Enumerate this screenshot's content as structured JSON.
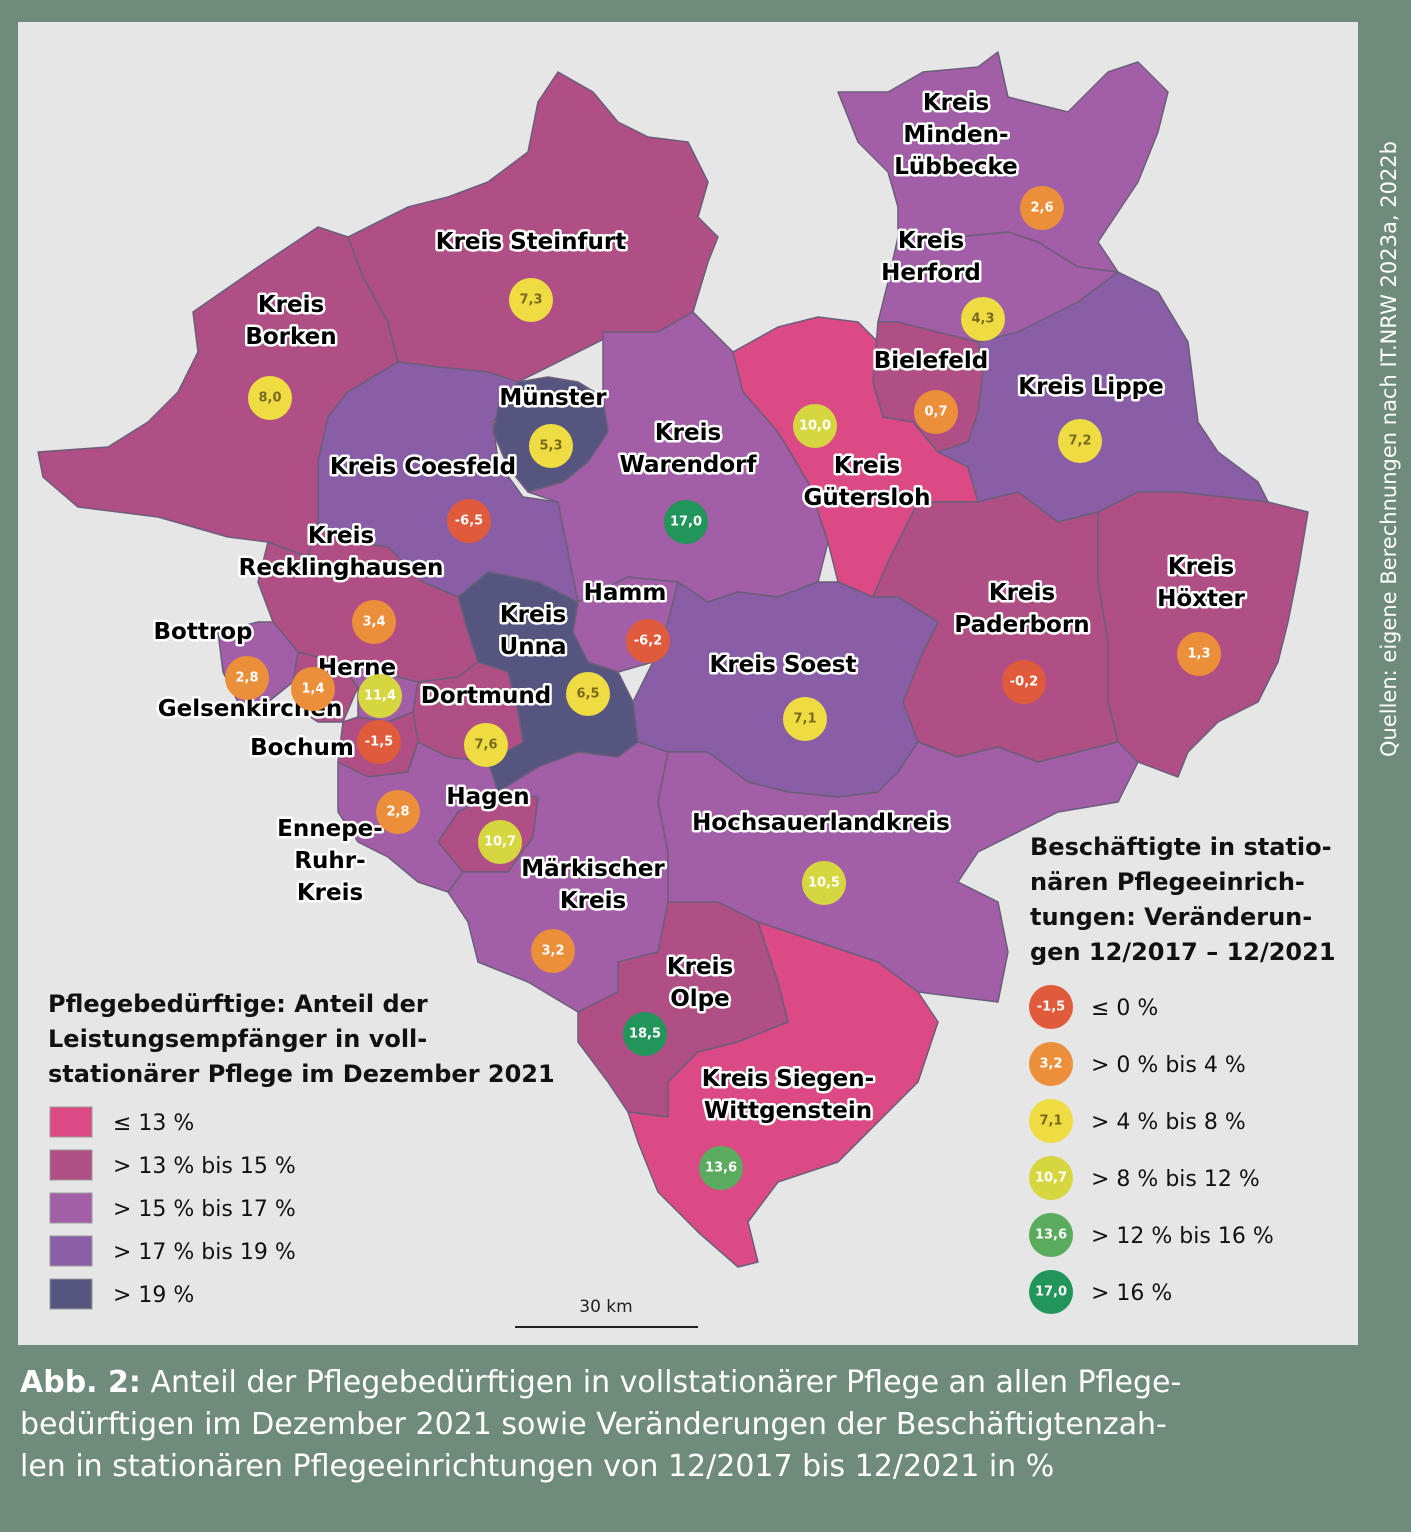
{
  "caption": {
    "label": "Abb. 2:",
    "line1": "Anteil der Pflegebedürftigen in vollstationärer Pflege an allen Pflege-",
    "line2": "bedürftigen im Dezember 2021 sowie Veränderungen der Beschäftigtenzah-",
    "line3": "len in stationären Pflegeeinrichtungen von 12/2017 bis 12/2021 in %"
  },
  "source": "Quellen: eigene Berechnungen nach IT.NRW 2023a, 2022b",
  "scale_bar": "30 km",
  "legend_share": {
    "title": [
      "Pflegebedürftige: Anteil der",
      "Leistungsempfänger in voll-",
      "stationärer Pflege im Dezember 2021"
    ],
    "classes": [
      {
        "label": "≤ 13 %",
        "color": "#db4a85"
      },
      {
        "label": "> 13 % bis 15 %",
        "color": "#b04e86"
      },
      {
        "label": "> 15 % bis 17 %",
        "color": "#a25ea6"
      },
      {
        "label": "> 17 % bis 19 %",
        "color": "#8a5ea6"
      },
      {
        "label": "> 19 %",
        "color": "#565580"
      }
    ]
  },
  "legend_change": {
    "title": [
      "Beschäftigte in statio-",
      "nären Pflegeeinrich-",
      "tungen: Veränderun-",
      "gen 12/2017 – 12/2021"
    ],
    "classes": [
      {
        "sample": "-1,5",
        "label": "≤ 0 %",
        "color": "#e05b3c",
        "text_color": "#ffffff"
      },
      {
        "sample": "3,2",
        "label": "> 0 % bis 4 %",
        "color": "#ec8f3a",
        "text_color": "#ffffff"
      },
      {
        "sample": "7,1",
        "label": "> 4 % bis 8 %",
        "color": "#eedc42",
        "text_color": "#7a6a20"
      },
      {
        "sample": "10,7",
        "label": "> 8 % bis 12 %",
        "color": "#d6d740",
        "text_color": "#ffffff"
      },
      {
        "sample": "13,6",
        "label": "> 12 % bis 16 %",
        "color": "#5bab5e",
        "text_color": "#ffffff"
      },
      {
        "sample": "17,0",
        "label": "> 16 %",
        "color": "#22955a",
        "text_color": "#ffffff"
      }
    ]
  },
  "regions": [
    {
      "id": "steinfurt",
      "label": [
        "Kreis Steinfurt"
      ],
      "value": "7,3",
      "share_class": 1,
      "change_class": 2
    },
    {
      "id": "borken",
      "label": [
        "Kreis",
        "Borken"
      ],
      "value": "8,0",
      "share_class": 1,
      "change_class": 2
    },
    {
      "id": "muenster",
      "label": [
        "Münster"
      ],
      "value": "5,3",
      "share_class": 4,
      "change_class": 2
    },
    {
      "id": "warendorf",
      "label": [
        "Kreis",
        "Warendorf"
      ],
      "value": "17,0",
      "share_class": 2,
      "change_class": 5
    },
    {
      "id": "coesfeld",
      "label": [
        "Kreis Coesfeld"
      ],
      "value": "-6,5",
      "share_class": 3,
      "change_class": 0
    },
    {
      "id": "minden",
      "label": [
        "Kreis",
        "Minden-",
        "Lübbecke"
      ],
      "value": "2,6",
      "share_class": 2,
      "change_class": 1
    },
    {
      "id": "herford",
      "label": [
        "Kreis",
        "Herford"
      ],
      "value": "4,3",
      "share_class": 2,
      "change_class": 2
    },
    {
      "id": "bielefeld",
      "label": [
        "Bielefeld"
      ],
      "value": "0,7",
      "share_class": 1,
      "change_class": 1
    },
    {
      "id": "lippe",
      "label": [
        "Kreis Lippe"
      ],
      "value": "7,2",
      "share_class": 3,
      "change_class": 2
    },
    {
      "id": "guetersloh",
      "label": [
        "Kreis",
        "Gütersloh"
      ],
      "value": "10,0",
      "share_class": 0,
      "change_class": 3
    },
    {
      "id": "recklinghausen",
      "label": [
        "Kreis",
        "Recklinghausen"
      ],
      "value": "3,4",
      "share_class": 1,
      "change_class": 1
    },
    {
      "id": "unna",
      "label": [
        "Kreis",
        "Unna"
      ],
      "value": "6,5",
      "share_class": 4,
      "change_class": 2
    },
    {
      "id": "hamm",
      "label": [
        "Hamm"
      ],
      "value": "-6,2",
      "share_class": 2,
      "change_class": 0
    },
    {
      "id": "soest",
      "label": [
        "Kreis Soest"
      ],
      "value": "7,1",
      "share_class": 3,
      "change_class": 2
    },
    {
      "id": "paderborn",
      "label": [
        "Kreis",
        "Paderborn"
      ],
      "value": "-0,2",
      "share_class": 1,
      "change_class": 0
    },
    {
      "id": "hoexter",
      "label": [
        "Kreis",
        "Höxter"
      ],
      "value": "1,3",
      "share_class": 1,
      "change_class": 1
    },
    {
      "id": "bottrop",
      "label": [
        "Bottrop"
      ],
      "value": "2,8",
      "share_class": 2,
      "change_class": 1
    },
    {
      "id": "gelsenkirchen",
      "label": [
        "Gelsenkirchen"
      ],
      "value": "1,4",
      "share_class": 1,
      "change_class": 1
    },
    {
      "id": "herne",
      "label": [
        "Herne"
      ],
      "value": "11,4",
      "share_class": 2,
      "change_class": 3
    },
    {
      "id": "dortmund",
      "label": [
        "Dortmund"
      ],
      "value": "7,6",
      "share_class": 1,
      "change_class": 2
    },
    {
      "id": "bochum",
      "label": [
        "Bochum"
      ],
      "value": "-1,5",
      "share_class": 1,
      "change_class": 0
    },
    {
      "id": "ennepe",
      "label": [
        "Ennepe-",
        "Ruhr-",
        "Kreis"
      ],
      "value": "2,8",
      "share_class": 2,
      "change_class": 1
    },
    {
      "id": "hagen",
      "label": [
        "Hagen"
      ],
      "value": "10,7",
      "share_class": 1,
      "change_class": 3
    },
    {
      "id": "hochsauerland",
      "label": [
        "Hochsauerlandkreis"
      ],
      "value": "10,5",
      "share_class": 2,
      "change_class": 3
    },
    {
      "id": "maerkisch",
      "label": [
        "Märkischer",
        "Kreis"
      ],
      "value": "3,2",
      "share_class": 2,
      "change_class": 1
    },
    {
      "id": "olpe",
      "label": [
        "Kreis",
        "Olpe"
      ],
      "value": "18,5",
      "share_class": 1,
      "change_class": 5
    },
    {
      "id": "siegen",
      "label": [
        "Kreis Siegen-",
        "Wittgenstein"
      ],
      "value": "13,6",
      "share_class": 0,
      "change_class": 4
    }
  ]
}
